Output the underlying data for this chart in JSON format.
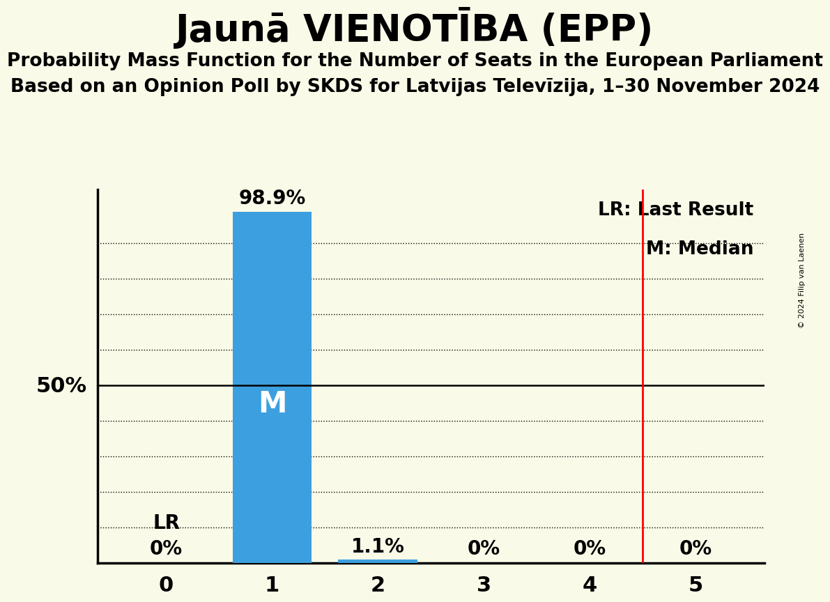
{
  "title": "Jaunā VIENOTĪBA (EPP)",
  "subtitle1": "Probability Mass Function for the Number of Seats in the European Parliament",
  "subtitle2": "Based on an Opinion Poll by SKDS for Latvijas Televīzija, 1–30 November 2024",
  "copyright": "© 2024 Filip van Laenen",
  "x_values": [
    0,
    1,
    2,
    3,
    4,
    5
  ],
  "probabilities": [
    0.0,
    0.989,
    0.011,
    0.0,
    0.0,
    0.0
  ],
  "bar_labels": [
    "0%",
    "98.9%",
    "1.1%",
    "0%",
    "0%",
    "0%"
  ],
  "bar_color": "#3ca0e0",
  "background_color": "#fafae8",
  "median": 1,
  "last_result": 4.5,
  "y_50_label": "50%",
  "title_fontsize": 38,
  "subtitle_fontsize": 19,
  "bar_label_fontsize": 20,
  "tick_fontsize": 22,
  "legend_fontsize": 19,
  "ylabel_fontsize": 22,
  "median_label": "M",
  "median_fontsize": 30,
  "lr_label": "LR",
  "lr_legend": "LR: Last Result",
  "m_legend": "M: Median",
  "y_dotted_lines": [
    0.1,
    0.2,
    0.3,
    0.4,
    0.6,
    0.7,
    0.8,
    0.9
  ],
  "ylim": [
    0,
    1.05
  ],
  "bar_width": 0.75
}
